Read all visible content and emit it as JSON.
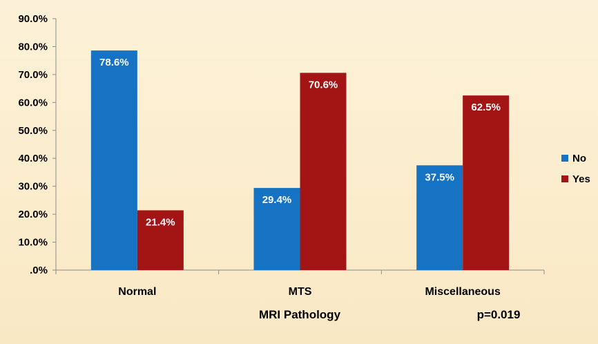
{
  "chart_data": {
    "type": "bar",
    "title": "",
    "xlabel": "MRI Pathology",
    "ylabel": "",
    "annotation": "p=0.019",
    "categories": [
      "Normal",
      "MTS",
      "Miscellaneous"
    ],
    "series": [
      {
        "name": "No",
        "color": "#1673c3",
        "values": [
          78.6,
          29.4,
          37.5
        ],
        "labels": [
          "78.6%",
          "29.4%",
          "37.5%"
        ]
      },
      {
        "name": "Yes",
        "color": "#a31515",
        "values": [
          21.4,
          70.6,
          62.5
        ],
        "labels": [
          "21.4%",
          "70.6%",
          "62.5%"
        ]
      }
    ],
    "ylim": [
      0,
      90
    ],
    "yticks": [
      0,
      10,
      20,
      30,
      40,
      50,
      60,
      70,
      80,
      90
    ],
    "ytick_labels": [
      ".0%",
      "10.0%",
      "20.0%",
      "30.0%",
      "40.0%",
      "50.0%",
      "60.0%",
      "70.0%",
      "80.0%",
      "90.0%"
    ],
    "grid": false,
    "legend_position": "right"
  }
}
